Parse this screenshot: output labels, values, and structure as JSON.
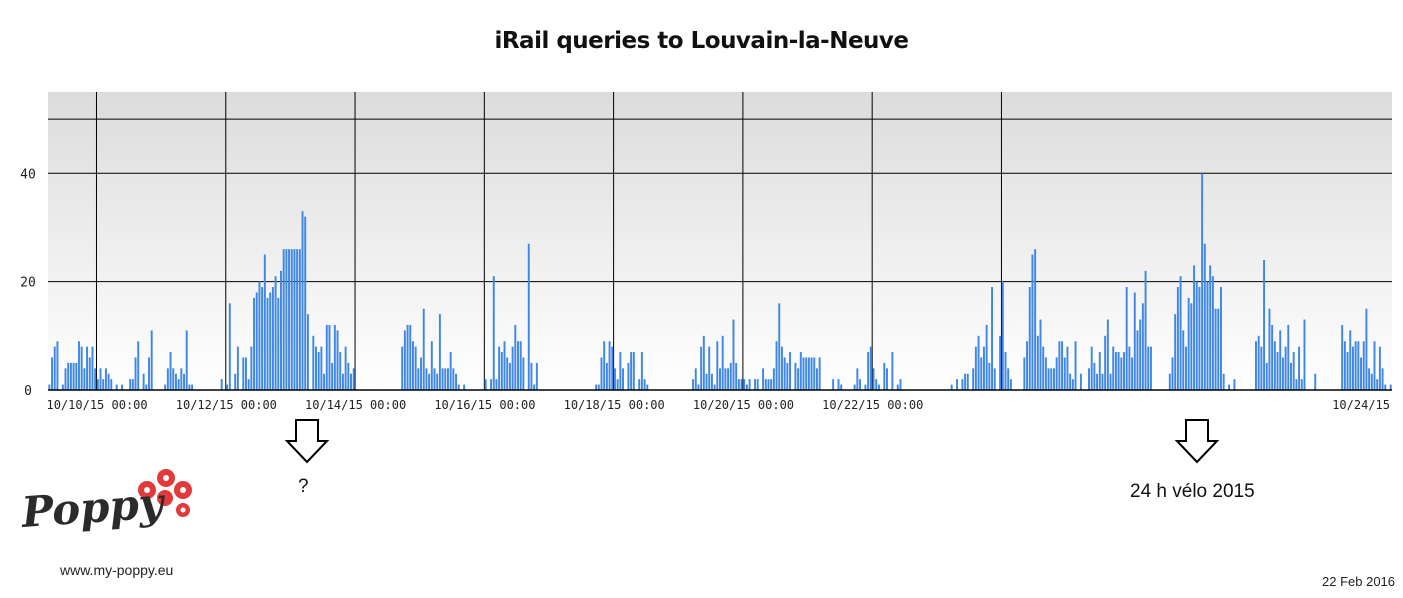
{
  "chart_data": {
    "type": "bar",
    "title": "iRail queries to Louvain-la-Neuve",
    "xlabel": "",
    "ylabel": "",
    "ylim": [
      0,
      55
    ],
    "y_ticks": [
      0,
      20,
      40
    ],
    "x_tick_labels": [
      "10/10/15 00:00",
      "10/12/15 00:00",
      "10/14/15 00:00",
      "10/16/15 00:00",
      "10/18/15 00:00",
      "10/20/15 00:00",
      "10/22/15 00:00",
      "10/24/15"
    ],
    "grid": true,
    "bar_color": "#3f87e6",
    "x_start": "10/08/15 06:00",
    "x_end": "10/24/15 00:00",
    "bin": "1 hour",
    "values": [
      1,
      6,
      8,
      9,
      0,
      1,
      4,
      5,
      5,
      5,
      5,
      9,
      8,
      4,
      8,
      6,
      8,
      4,
      2,
      4,
      2,
      4,
      3,
      2,
      0,
      1,
      0,
      1,
      0,
      0,
      2,
      2,
      6,
      9,
      0,
      3,
      1,
      6,
      11,
      0,
      0,
      0,
      0,
      1,
      4,
      7,
      4,
      3,
      2,
      4,
      3,
      11,
      1,
      1,
      0,
      0,
      0,
      0,
      0,
      0,
      0,
      0,
      0,
      0,
      2,
      0,
      1,
      16,
      0,
      3,
      8,
      0,
      6,
      6,
      2,
      8,
      17,
      18,
      20,
      19,
      25,
      17,
      18,
      19,
      21,
      17,
      22,
      26,
      26,
      26,
      26,
      26,
      26,
      26,
      33,
      32,
      14,
      0,
      10,
      8,
      7,
      8,
      3,
      12,
      12,
      5,
      12,
      11,
      7,
      3,
      8,
      5,
      3,
      4,
      0,
      0,
      0,
      0,
      0,
      0,
      0,
      0,
      0,
      0,
      0,
      0,
      0,
      0,
      0,
      0,
      0,
      8,
      11,
      12,
      12,
      9,
      8,
      4,
      6,
      15,
      4,
      3,
      9,
      4,
      3,
      14,
      4,
      4,
      4,
      7,
      4,
      3,
      1,
      0,
      1,
      0,
      0,
      0,
      0,
      0,
      0,
      0,
      2,
      0,
      2,
      21,
      2,
      8,
      7,
      9,
      6,
      5,
      8,
      12,
      9,
      9,
      6,
      0,
      27,
      5,
      1,
      5,
      0,
      0,
      0,
      0,
      0,
      0,
      0,
      0,
      0,
      0,
      0,
      0,
      0,
      0,
      0,
      0,
      0,
      0,
      0,
      0,
      0,
      1,
      1,
      6,
      9,
      5,
      9,
      8,
      4,
      2,
      7,
      4,
      0,
      5,
      7,
      7,
      0,
      2,
      7,
      2,
      1,
      0,
      0,
      0,
      0,
      0,
      0,
      0,
      0,
      0,
      0,
      0,
      0,
      0,
      0,
      0,
      0,
      2,
      4,
      1,
      8,
      10,
      3,
      8,
      3,
      1,
      9,
      4,
      10,
      4,
      4,
      5,
      13,
      5,
      2,
      2,
      2,
      1,
      2,
      0,
      2,
      2,
      0,
      4,
      2,
      2,
      2,
      4,
      9,
      16,
      8,
      6,
      5,
      7,
      0,
      5,
      4,
      7,
      6,
      6,
      6,
      6,
      6,
      4,
      6,
      0,
      0,
      0,
      0,
      2,
      0,
      2,
      1,
      0,
      0,
      0,
      0,
      1,
      4,
      2,
      0,
      1,
      7,
      8,
      4,
      2,
      1,
      0,
      5,
      4,
      0,
      7,
      0,
      1,
      2,
      0,
      0,
      0,
      0,
      0,
      0,
      0,
      0,
      0,
      0,
      0,
      0,
      0,
      0,
      0,
      0,
      0,
      0,
      1,
      0,
      2,
      0,
      2,
      3,
      3,
      0,
      4,
      8,
      10,
      6,
      8,
      12,
      5,
      19,
      4,
      0,
      10,
      20,
      7,
      4,
      2,
      0,
      0,
      0,
      0,
      6,
      9,
      19,
      25,
      26,
      10,
      13,
      8,
      6,
      4,
      4,
      4,
      6,
      9,
      9,
      6,
      8,
      3,
      2,
      9,
      0,
      3,
      0,
      0,
      4,
      8,
      5,
      3,
      7,
      3,
      10,
      13,
      3,
      8,
      7,
      7,
      6,
      7,
      19,
      8,
      6,
      18,
      11,
      13,
      16,
      22,
      8,
      8,
      0,
      0,
      0,
      0,
      0,
      0,
      3,
      6,
      14,
      19,
      21,
      11,
      8,
      17,
      16,
      23,
      20,
      19,
      40,
      27,
      20,
      23,
      21,
      15,
      15,
      19,
      3,
      0,
      1,
      0,
      2,
      0,
      0,
      0,
      0,
      0,
      0,
      0,
      9,
      10,
      8,
      24,
      5,
      15,
      12,
      9,
      7,
      11,
      6,
      8,
      12,
      5,
      7,
      2,
      8,
      2,
      13,
      0,
      0,
      0,
      3,
      0,
      0,
      0,
      0,
      0,
      0,
      0,
      0,
      0,
      12,
      9,
      7,
      11,
      8,
      9,
      9,
      6,
      9,
      15,
      4,
      3,
      9,
      2,
      8,
      4,
      1,
      0,
      1
    ]
  },
  "annotations": {
    "arrow1_text": "?",
    "arrow2_text": "24 h vélo 2015"
  },
  "footer": {
    "logo_text": "Poppy",
    "url": "www.my-poppy.eu",
    "date": "22 Feb 2016"
  }
}
